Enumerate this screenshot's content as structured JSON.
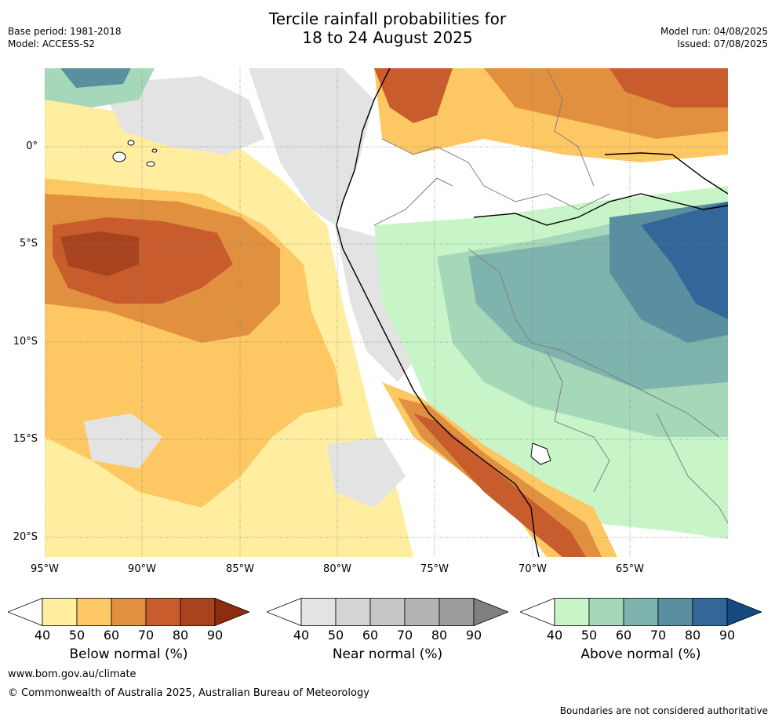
{
  "title": {
    "line1": "Tercile rainfall probabilities for",
    "line2": "18 to 24 August 2025"
  },
  "meta": {
    "base_period": "Base period: 1981-2018",
    "model": "Model: ACCESS-S2",
    "model_run": "Model run: 04/08/2025",
    "issued": "Issued: 07/08/2025"
  },
  "map": {
    "lat_labels": [
      "0°",
      "5°S",
      "10°S",
      "15°S",
      "20°S"
    ],
    "lon_labels": [
      "95°W",
      "90°W",
      "85°W",
      "80°W",
      "75°W",
      "70°W",
      "65°W"
    ],
    "colors": {
      "ocean_bg": "#ffffff",
      "coastline": "#000000",
      "border": "#808080",
      "grid": "#808080"
    }
  },
  "colorbars": [
    {
      "title": "Below normal (%)",
      "ticks": [
        "40",
        "50",
        "60",
        "70",
        "80",
        "90"
      ],
      "colors": [
        "#ffffff",
        "#ffeda0",
        "#fdc864",
        "#e0903e",
        "#c85c2c",
        "#a8431f",
        "#8c2d0e"
      ]
    },
    {
      "title": "Near normal (%)",
      "ticks": [
        "40",
        "50",
        "60",
        "70",
        "80",
        "90"
      ],
      "colors": [
        "#ffffff",
        "#e3e3e3",
        "#d4d4d4",
        "#c6c6c6",
        "#b4b4b4",
        "#9c9c9c",
        "#7f7f7f"
      ]
    },
    {
      "title": "Above normal (%)",
      "ticks": [
        "40",
        "50",
        "60",
        "70",
        "80",
        "90"
      ],
      "colors": [
        "#ffffff",
        "#c8f5c8",
        "#a5d8b8",
        "#7fb3ad",
        "#5a8fa0",
        "#336699",
        "#144a80"
      ]
    }
  ],
  "footer": {
    "url": "www.bom.gov.au/climate",
    "copyright": "© Commonwealth of Australia 2025, Australian Bureau of Meteorology",
    "disclaimer": "Boundaries are not considered authoritative"
  }
}
